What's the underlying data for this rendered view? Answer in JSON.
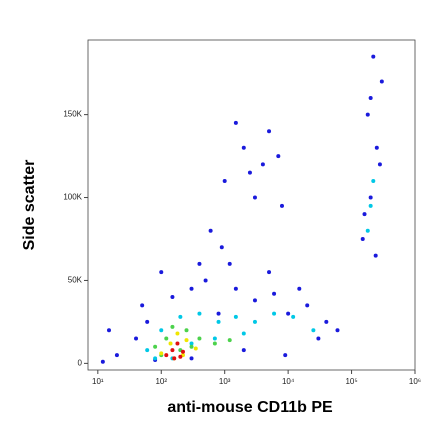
{
  "chart_data": {
    "type": "scatter",
    "x_label": "anti-mouse CD11b PE",
    "y_label": "Side scatter",
    "xscale": "log",
    "xlim": [
      7,
      1000000
    ],
    "xticks": [
      {
        "value": 10,
        "label": "10¹"
      },
      {
        "value": 100,
        "label": "10²"
      },
      {
        "value": 1000,
        "label": "10³"
      },
      {
        "value": 10000,
        "label": "10⁴"
      },
      {
        "value": 100000,
        "label": "10⁵"
      },
      {
        "value": 1000000,
        "label": "10⁶"
      }
    ],
    "ylim": [
      -4000,
      195000
    ],
    "yticks": [
      0,
      {
        "value": 50000,
        "label": "50K"
      },
      {
        "value": 100000,
        "label": "100K"
      },
      {
        "value": 150000,
        "label": "150K"
      }
    ],
    "series": [
      {
        "color": "#1a1adc",
        "x": [
          20,
          40,
          60,
          80,
          150,
          300,
          500,
          800,
          1500,
          3000,
          6000,
          10000,
          20000,
          40000,
          600,
          1000,
          2000,
          4000,
          8000,
          1500,
          3000,
          5000,
          900,
          2500,
          7000,
          150000,
          200000,
          250000,
          180000,
          300000,
          220000,
          160000,
          280000,
          200000,
          240000,
          50,
          100,
          400,
          1200,
          5000,
          15000,
          30000,
          60000,
          12,
          15,
          300,
          2000,
          9000
        ],
        "values": [
          5000,
          15000,
          25000,
          2000,
          40000,
          45000,
          50000,
          30000,
          45000,
          38000,
          42000,
          30000,
          35000,
          25000,
          80000,
          110000,
          130000,
          120000,
          95000,
          145000,
          100000,
          140000,
          70000,
          115000,
          125000,
          75000,
          100000,
          130000,
          150000,
          170000,
          185000,
          90000,
          120000,
          160000,
          65000,
          35000,
          55000,
          60000,
          60000,
          55000,
          45000,
          15000,
          20000,
          1000,
          20000,
          3000,
          8000,
          5000
        ]
      },
      {
        "color": "#00c8e6",
        "x": [
          60,
          100,
          200,
          400,
          800,
          1500,
          3000,
          6000,
          12000,
          25000,
          300,
          700,
          2000,
          80,
          150,
          180000,
          200000,
          220000
        ],
        "values": [
          8000,
          20000,
          28000,
          30000,
          25000,
          28000,
          25000,
          30000,
          28000,
          20000,
          12000,
          15000,
          18000,
          3000,
          3000,
          80000,
          95000,
          110000
        ]
      },
      {
        "color": "#4cd24c",
        "x": [
          80,
          120,
          150,
          250,
          400,
          700,
          1200,
          100,
          200,
          300
        ],
        "values": [
          10000,
          15000,
          22000,
          20000,
          15000,
          12000,
          14000,
          5000,
          8000,
          10000
        ]
      },
      {
        "color": "#f0e600",
        "x": [
          100,
          140,
          180,
          250,
          350,
          160,
          220
        ],
        "values": [
          6000,
          12000,
          18000,
          14000,
          9000,
          3000,
          5000
        ]
      },
      {
        "color": "#e01010",
        "x": [
          120,
          150,
          180,
          220,
          160,
          200
        ],
        "values": [
          5000,
          8000,
          12000,
          7000,
          3000,
          4000
        ]
      }
    ]
  }
}
